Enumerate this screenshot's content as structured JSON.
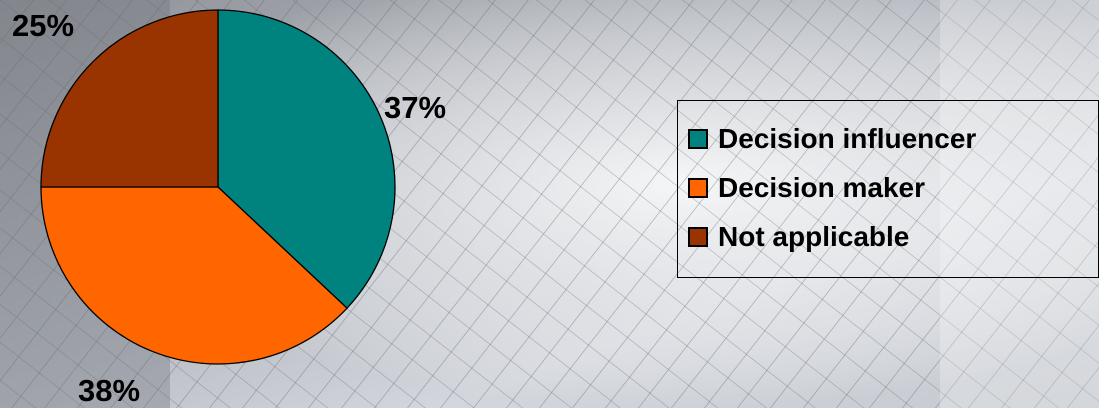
{
  "chart_data": {
    "type": "pie",
    "categories": [
      "Decision influencer",
      "Decision maker",
      "Not applicable"
    ],
    "values": [
      37,
      38,
      25
    ],
    "labels": [
      "37%",
      "38%",
      "25%"
    ],
    "colors": [
      "#00827F",
      "#FF6600",
      "#993300"
    ],
    "legend_position": "right"
  }
}
